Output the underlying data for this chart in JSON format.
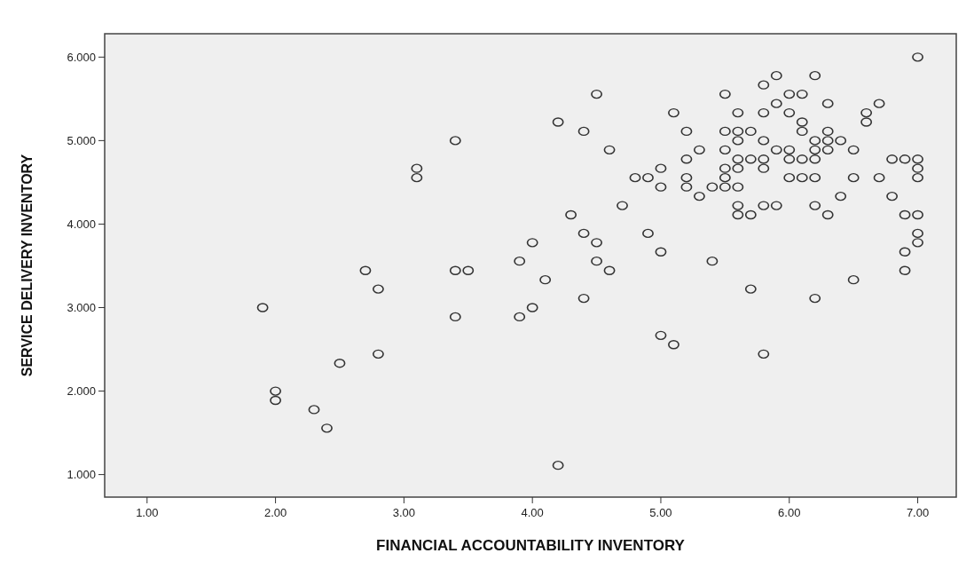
{
  "chart_data": {
    "type": "scatter",
    "xlabel": "FINANCIAL ACCOUNTABILITY INVENTORY",
    "ylabel": "SERVICE DELIVERY INVENTORY",
    "marker": "circle",
    "xlim": [
      0.67,
      7.3
    ],
    "ylim": [
      0.73,
      6.28
    ],
    "xticks": [
      {
        "value": 1,
        "label": "1.00"
      },
      {
        "value": 2,
        "label": "2.00"
      },
      {
        "value": 3,
        "label": "3.00"
      },
      {
        "value": 4,
        "label": "4.00"
      },
      {
        "value": 5,
        "label": "5.00"
      },
      {
        "value": 6,
        "label": "6.00"
      },
      {
        "value": 7,
        "label": "7.00"
      }
    ],
    "yticks": [
      {
        "value": 1,
        "label": "1.000"
      },
      {
        "value": 2,
        "label": "2.000"
      },
      {
        "value": 3,
        "label": "3.000"
      },
      {
        "value": 4,
        "label": "4.000"
      },
      {
        "value": 5,
        "label": "5.000"
      },
      {
        "value": 6,
        "label": "6.000"
      }
    ],
    "series": [
      {
        "color": "#333333",
        "x": [
          7.0,
          5.9,
          6.2,
          5.8,
          4.5,
          5.5,
          6.0,
          6.1,
          5.9,
          6.3,
          6.7,
          5.1,
          5.6,
          5.8,
          6.0,
          6.6,
          4.2,
          6.1,
          6.6,
          4.4,
          5.2,
          5.5,
          5.6,
          5.7,
          6.1,
          6.3,
          3.4,
          5.6,
          5.8,
          6.2,
          6.3,
          6.4,
          4.6,
          5.3,
          5.5,
          5.9,
          6.0,
          6.2,
          6.3,
          6.5,
          5.2,
          5.6,
          5.7,
          5.8,
          6.0,
          6.1,
          6.2,
          6.8,
          6.9,
          7.0,
          3.1,
          5.0,
          5.5,
          5.6,
          5.8,
          7.0,
          3.1,
          4.8,
          4.9,
          5.2,
          5.5,
          6.0,
          6.1,
          6.2,
          6.5,
          6.7,
          7.0,
          5.0,
          5.2,
          5.4,
          5.5,
          5.6,
          4.7,
          5.3,
          6.4,
          6.8,
          5.6,
          5.8,
          5.9,
          6.2,
          4.3,
          5.6,
          5.7,
          6.3,
          6.9,
          7.0,
          4.4,
          4.9,
          7.0,
          4.0,
          4.5,
          7.0,
          5.0,
          6.9,
          3.9,
          4.5,
          5.4,
          2.7,
          3.4,
          3.5,
          4.6,
          6.9,
          4.1,
          6.5,
          2.8,
          5.7,
          4.4,
          6.2,
          1.9,
          4.0,
          3.4,
          3.9,
          5.0,
          5.1,
          2.8,
          5.8,
          2.5,
          2.0,
          2.0,
          2.3,
          2.4,
          4.2
        ],
        "values": [
          6.0,
          5.778,
          5.778,
          5.667,
          5.556,
          5.556,
          5.556,
          5.556,
          5.444,
          5.444,
          5.444,
          5.333,
          5.333,
          5.333,
          5.333,
          5.333,
          5.222,
          5.222,
          5.222,
          5.111,
          5.111,
          5.111,
          5.111,
          5.111,
          5.111,
          5.111,
          5.0,
          5.0,
          5.0,
          5.0,
          5.0,
          5.0,
          4.889,
          4.889,
          4.889,
          4.889,
          4.889,
          4.889,
          4.889,
          4.889,
          4.778,
          4.778,
          4.778,
          4.778,
          4.778,
          4.778,
          4.778,
          4.778,
          4.778,
          4.778,
          4.667,
          4.667,
          4.667,
          4.667,
          4.667,
          4.667,
          4.556,
          4.556,
          4.556,
          4.556,
          4.556,
          4.556,
          4.556,
          4.556,
          4.556,
          4.556,
          4.556,
          4.444,
          4.444,
          4.444,
          4.444,
          4.444,
          4.222,
          4.333,
          4.333,
          4.333,
          4.222,
          4.222,
          4.222,
          4.222,
          4.111,
          4.111,
          4.111,
          4.111,
          4.111,
          4.111,
          3.889,
          3.889,
          3.889,
          3.778,
          3.778,
          3.778,
          3.667,
          3.667,
          3.556,
          3.556,
          3.556,
          3.444,
          3.444,
          3.444,
          3.444,
          3.444,
          3.333,
          3.333,
          3.222,
          3.222,
          3.111,
          3.111,
          3.0,
          3.0,
          2.889,
          2.889,
          2.667,
          2.556,
          2.444,
          2.444,
          2.333,
          2.0,
          1.889,
          1.778,
          1.556,
          1.111
        ]
      }
    ]
  }
}
